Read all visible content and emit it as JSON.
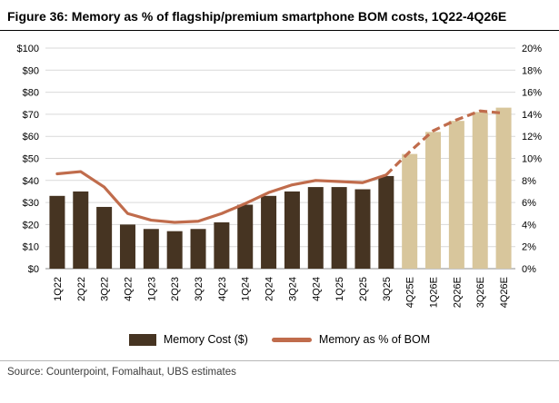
{
  "title": "Figure 36: Memory as % of flagship/premium smartphone BOM costs, 1Q22-4Q26E",
  "source": "Source: Counterpoint, Fomalhaut, UBS estimates",
  "legend": {
    "bar_label": "Memory Cost ($)",
    "line_label": "Memory as % of BOM"
  },
  "colors": {
    "bar_actual": "#463422",
    "bar_estimate": "#d8c69c",
    "line": "#c06c4c",
    "grid": "#d9d9d9",
    "axis_line": "#8c8c8c",
    "axis_text": "#000000"
  },
  "chart_data": {
    "type": "bar+line",
    "title": "Memory as % of flagship/premium smartphone BOM costs",
    "categories": [
      "1Q22",
      "2Q22",
      "3Q22",
      "4Q22",
      "1Q23",
      "2Q23",
      "3Q23",
      "4Q23",
      "1Q24",
      "2Q24",
      "3Q24",
      "4Q24",
      "1Q25",
      "2Q25",
      "3Q25",
      "4Q25E",
      "1Q26E",
      "2Q26E",
      "3Q26E",
      "4Q26E"
    ],
    "series": [
      {
        "name": "Memory Cost ($)",
        "type": "bar",
        "axis": "left",
        "estimate_from_index": 15,
        "values": [
          33,
          35,
          28,
          20,
          18,
          17,
          18,
          21,
          29,
          33,
          35,
          37,
          37,
          36,
          42,
          52,
          62,
          67,
          71,
          73
        ]
      },
      {
        "name": "Memory as % of BOM",
        "type": "line",
        "axis": "right",
        "estimate_from_index": 15,
        "values": [
          8.6,
          8.8,
          7.4,
          5.0,
          4.4,
          4.2,
          4.3,
          5.0,
          5.9,
          6.9,
          7.6,
          8.0,
          7.9,
          7.8,
          8.5,
          10.6,
          12.5,
          13.5,
          14.3,
          14.1
        ]
      }
    ],
    "left_axis": {
      "min": 0,
      "max": 100,
      "step": 10,
      "prefix": "$",
      "suffix": ""
    },
    "right_axis": {
      "min": 0,
      "max": 20,
      "step": 2,
      "prefix": "",
      "suffix": "%"
    },
    "grid": true,
    "legend_position": "bottom"
  }
}
